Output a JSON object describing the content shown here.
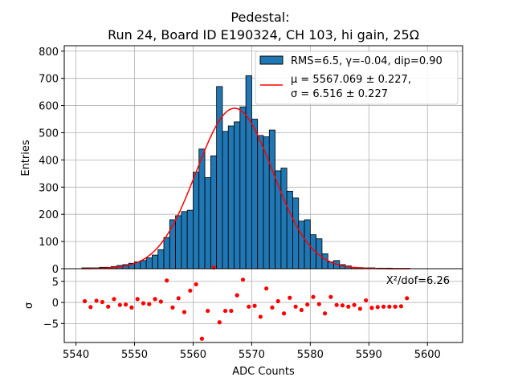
{
  "chart_data": {
    "type": "bar",
    "title_line1": "Pedestal:",
    "title_line2": "Run 24, Board ID E190324, CH 103, hi gain, 25Ω",
    "xlabel": "ADC Counts",
    "ylabel_top": "Entries",
    "ylabel_bottom": "σ",
    "xlim": [
      5538,
      5606
    ],
    "ylim_top": [
      0,
      820
    ],
    "ylim_bottom": [
      -9.5,
      8
    ],
    "x_ticks": [
      5540,
      5550,
      5560,
      5570,
      5580,
      5590,
      5600
    ],
    "y_ticks_top": [
      0,
      100,
      200,
      300,
      400,
      500,
      600,
      700,
      800
    ],
    "y_ticks_bottom": [
      -5,
      0,
      5
    ],
    "grid": true,
    "legend_position": "top-right",
    "legend": {
      "hist_label": "RMS=6.5, γ=-0.04, dip=0.90",
      "fit_label_mu": "μ = 5567.069 ± 0.227,",
      "fit_label_sigma": "σ = 6.516 ± 0.227"
    },
    "chi2_text": "X²/dof=6.26",
    "colors": {
      "hist_fill": "#1f77b4",
      "hist_edge": "#000000",
      "fit": "#ff0000",
      "residual": "#ff0000"
    },
    "fit": {
      "mu": 5567.069,
      "sigma": 6.516,
      "amplitude": 590
    },
    "series": [
      {
        "name": "RMS=6.5, γ=-0.04, dip=0.90",
        "bin_width": 1,
        "bin_left_edges": [
          5541,
          5542,
          5543,
          5544,
          5545,
          5546,
          5547,
          5548,
          5549,
          5550,
          5551,
          5552,
          5553,
          5554,
          5555,
          5556,
          5557,
          5558,
          5559,
          5560,
          5561,
          5562,
          5563,
          5564,
          5565,
          5566,
          5567,
          5568,
          5569,
          5570,
          5571,
          5572,
          5573,
          5574,
          5575,
          5576,
          5577,
          5578,
          5579,
          5580,
          5581,
          5582,
          5583,
          5584,
          5585,
          5586,
          5587,
          5588,
          5589,
          5590,
          5591,
          5592,
          5593,
          5594,
          5595,
          5596
        ],
        "values": [
          3,
          3,
          3,
          5,
          5,
          8,
          12,
          15,
          20,
          25,
          30,
          40,
          50,
          70,
          115,
          180,
          195,
          210,
          215,
          355,
          440,
          335,
          415,
          670,
          505,
          525,
          540,
          595,
          710,
          550,
          490,
          485,
          510,
          360,
          370,
          285,
          260,
          175,
          180,
          125,
          110,
          55,
          25,
          30,
          15,
          10,
          5,
          4,
          3,
          3,
          2,
          2,
          2,
          1,
          1,
          1
        ]
      },
      {
        "name": "",
        "type": "scatter",
        "x": [
          5541.5,
          5542.5,
          5543.5,
          5544.5,
          5545.5,
          5546.5,
          5547.5,
          5548.5,
          5549.5,
          5550.5,
          5551.5,
          5552.5,
          5553.5,
          5554.5,
          5555.5,
          5556.5,
          5557.5,
          5558.5,
          5559.5,
          5560.5,
          5561.5,
          5562.5,
          5563.5,
          5564.5,
          5565.5,
          5566.5,
          5567.5,
          5568.5,
          5569.5,
          5570.5,
          5571.5,
          5572.5,
          5573.5,
          5574.5,
          5575.5,
          5576.5,
          5577.5,
          5578.5,
          5579.5,
          5580.5,
          5581.5,
          5582.5,
          5583.5,
          5584.5,
          5585.5,
          5586.5,
          5587.5,
          5588.5,
          5589.5,
          5590.5,
          5591.5,
          5592.5,
          5593.5,
          5594.5,
          5595.5,
          5596.5
        ],
        "y": [
          0.3,
          -1.1,
          0.4,
          0.1,
          -1.0,
          0.8,
          -0.6,
          -0.5,
          -1.2,
          0.8,
          -0.2,
          -0.4,
          0.8,
          0.2,
          5.2,
          -1.2,
          1.0,
          -2.3,
          2.8,
          4.3,
          -8.6,
          -2.0,
          8.3,
          -4.7,
          -2.0,
          -2.0,
          1.7,
          5.4,
          -1.0,
          -0.8,
          -3.4,
          3.3,
          -1.2,
          0.3,
          -2.6,
          1.1,
          -1.0,
          -1.8,
          -0.5,
          1.3,
          -0.4,
          -2.6,
          1.3,
          -0.6,
          -0.7,
          -1.0,
          -0.6,
          -1.5,
          0.5,
          -1.3,
          -1.1,
          -1.0,
          -1.0,
          -1.0,
          -0.9,
          1.0
        ]
      }
    ]
  }
}
